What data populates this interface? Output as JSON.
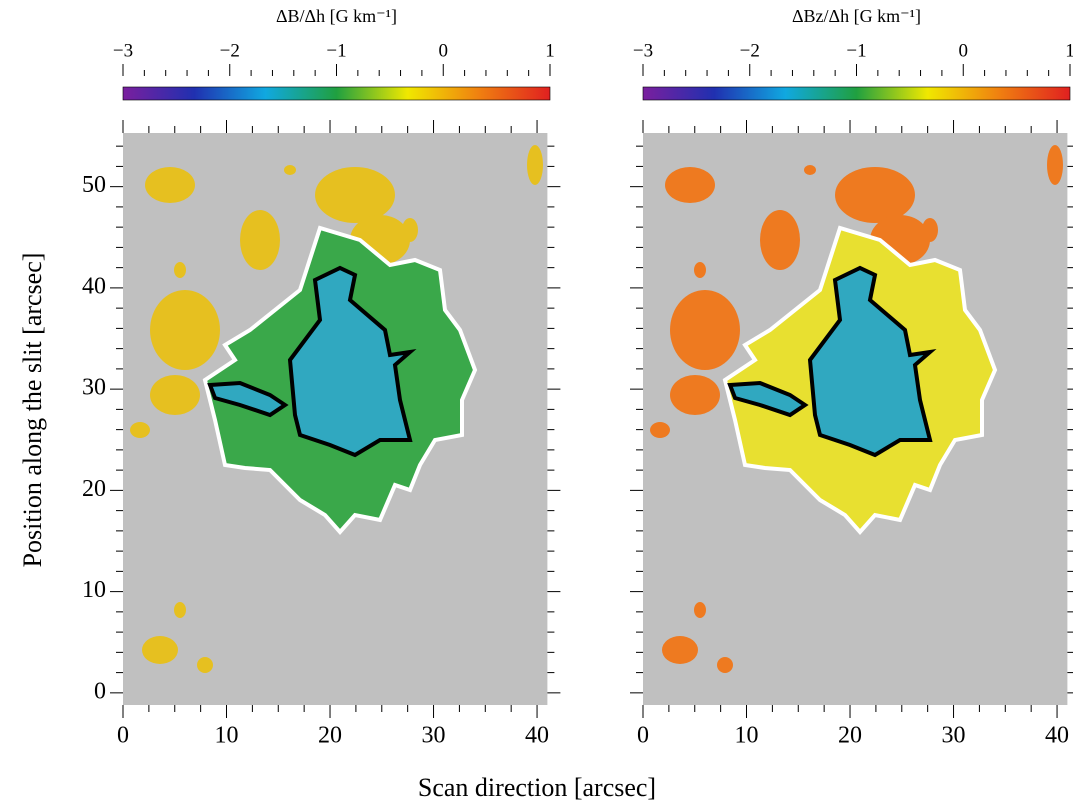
{
  "chart_data": [
    {
      "type": "heatmap",
      "colorbar_label": "ΔB/Δh   [G km⁻¹]",
      "colorbar_lim": [
        -3,
        1
      ],
      "colorbar_ticks": [
        {
          "value": -3,
          "label": "−3"
        },
        {
          "value": -2,
          "label": "−2"
        },
        {
          "value": -1,
          "label": "−1"
        },
        0,
        1
      ],
      "colormap": [
        "#7a1f9e",
        "#2030b0",
        "#10a8e0",
        "#20a040",
        "#f0e800",
        "#f08010",
        "#e02020"
      ],
      "xlim": [
        0,
        41
      ],
      "xticks": [
        0,
        10,
        20,
        30,
        40
      ],
      "ylim": [
        -1.2,
        55.3
      ],
      "yticks": [
        0,
        10,
        20,
        30,
        40,
        50
      ],
      "ylabel": "Position along the slit   [arcsec]",
      "xlabel": "Scan direction   [arcsec]",
      "penumbra_color": "#3aa84a",
      "outer_color": "#e6c020"
    },
    {
      "type": "heatmap",
      "colorbar_label": "ΔBz/Δh   [G km⁻¹]",
      "colorbar_lim": [
        -3,
        1
      ],
      "colorbar_ticks": [
        {
          "value": -3,
          "label": "−3"
        },
        {
          "value": -2,
          "label": "−2"
        },
        {
          "value": -1,
          "label": "−1"
        },
        0,
        1
      ],
      "colormap": [
        "#7a1f9e",
        "#2030b0",
        "#10a8e0",
        "#20a040",
        "#f0e800",
        "#f08010",
        "#e02020"
      ],
      "xlim": [
        0,
        41
      ],
      "xticks": [
        0,
        10,
        20,
        30,
        40
      ],
      "ylim": [
        -1.2,
        55.3
      ],
      "yticks": [
        0,
        10,
        20,
        30,
        40,
        50
      ],
      "ytick_labels": false,
      "penumbra_color": "#e8e030",
      "outer_color": "#ee7a20"
    }
  ]
}
